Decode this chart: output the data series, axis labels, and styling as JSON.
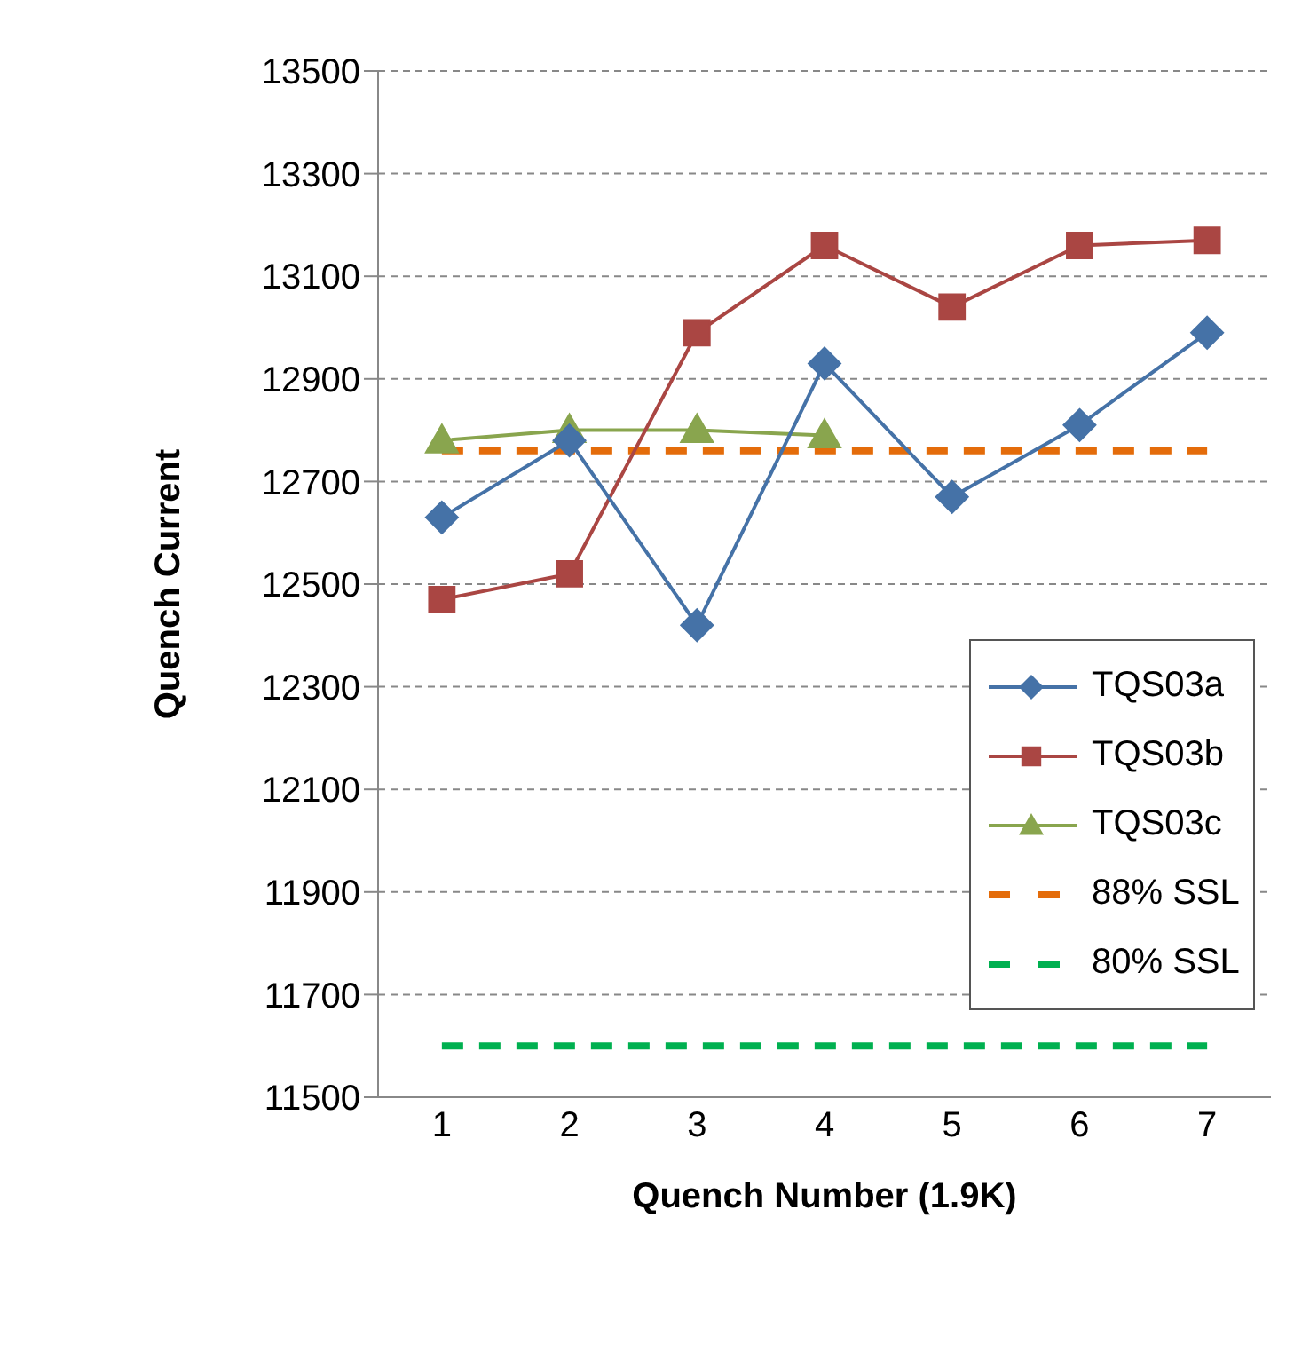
{
  "chart_data": {
    "type": "line",
    "xlabel": "Quench Number (1.9K)",
    "ylabel": "Quench Current",
    "categories": [
      "1",
      "2",
      "3",
      "4",
      "5",
      "6",
      "7"
    ],
    "series": [
      {
        "name": "TQS03a",
        "color": "#4572a7",
        "marker": "diamond",
        "line_style": "solid",
        "values": [
          12630,
          12780,
          12420,
          12930,
          12670,
          12810,
          12990
        ]
      },
      {
        "name": "TQS03b",
        "color": "#aa4643",
        "marker": "square",
        "line_style": "solid",
        "values": [
          12470,
          12520,
          12990,
          13160,
          13040,
          13160,
          13170
        ]
      },
      {
        "name": "TQS03c",
        "color": "#89a54e",
        "marker": "triangle",
        "line_style": "solid",
        "values": [
          12780,
          12800,
          12800,
          12790,
          null,
          null,
          null
        ]
      },
      {
        "name": "88% SSL",
        "color": "#e46c0a",
        "marker": "none",
        "line_style": "dashed",
        "values": [
          12760,
          12760,
          12760,
          12760,
          12760,
          12760,
          12760
        ]
      },
      {
        "name": "80% SSL",
        "color": "#00b050",
        "marker": "none",
        "line_style": "dashed",
        "values": [
          11600,
          11600,
          11600,
          11600,
          11600,
          11600,
          11600
        ]
      }
    ],
    "ylim": [
      11500,
      13500
    ],
    "yticks": [
      11500,
      11700,
      11900,
      12100,
      12300,
      12500,
      12700,
      12900,
      13100,
      13300,
      13500
    ],
    "grid": "y",
    "legend": "right"
  }
}
